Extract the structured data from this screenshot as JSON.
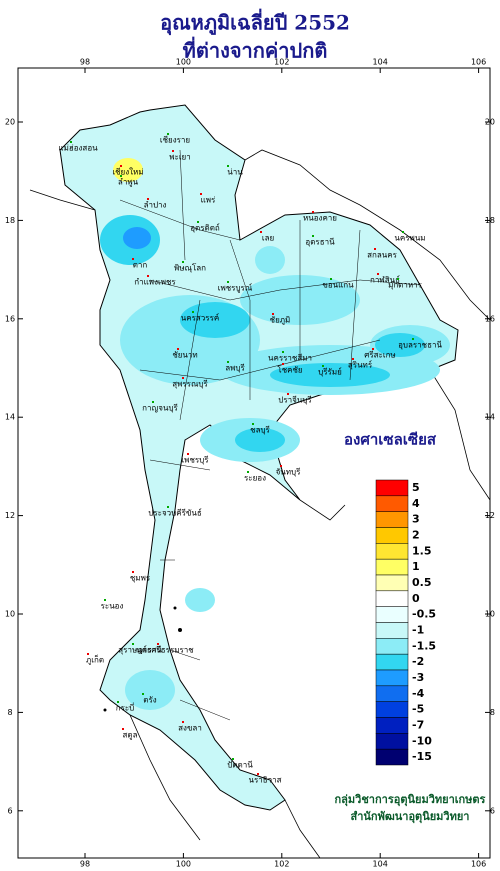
{
  "title": [
    "อุณหภูมิเฉลี่ยปี 2552",
    "ที่ต่างจากค่าปกติ"
  ],
  "lon_ticks": [
    98,
    100,
    102,
    104,
    106
  ],
  "lat_ticks": [
    20,
    18,
    16,
    14,
    12,
    10,
    8,
    6
  ],
  "legend": {
    "title": "องศาเซลเซียส",
    "items": [
      {
        "label": 5,
        "color": "#ff0000"
      },
      {
        "label": 4,
        "color": "#ff5a00"
      },
      {
        "label": 3,
        "color": "#ff9600"
      },
      {
        "label": 2,
        "color": "#ffc800"
      },
      {
        "label": 1.5,
        "color": "#ffe632"
      },
      {
        "label": 1,
        "color": "#ffff64"
      },
      {
        "label": 0.5,
        "color": "#ffffb4"
      },
      {
        "label": 0,
        "color": "#ffffff"
      },
      {
        "label": -0.5,
        "color": "#eaffff"
      },
      {
        "label": -1,
        "color": "#c8f8f8"
      },
      {
        "label": -1.5,
        "color": "#8cecf6"
      },
      {
        "label": -2,
        "color": "#32d6f0"
      },
      {
        "label": -3,
        "color": "#1e9cff"
      },
      {
        "label": -4,
        "color": "#106ef0"
      },
      {
        "label": -5,
        "color": "#0040e0"
      },
      {
        "label": -7,
        "color": "#0020c0"
      },
      {
        "label": -10,
        "color": "#0010a0"
      },
      {
        "label": -15,
        "color": "#000070"
      }
    ]
  },
  "provinces": [
    "เชียงราย",
    "พะเยา",
    "น่าน",
    "เชียงใหม่",
    "ลำพูน",
    "แพร่",
    "แม่ฮ่องสอน",
    "ลำปาง",
    "อุตรดิตถ์",
    "ตาก",
    "พิษณุโลก",
    "กำแพงเพชร",
    "เพชรบูรณ์",
    "หนองคาย",
    "อุดรธานี",
    "สกลนคร",
    "นครพนม",
    "เลย",
    "ขอนแก่น",
    "กาฬสินธุ์",
    "มุกดาหาร",
    "ชัยภูมิ",
    "นครสวรรค์",
    "ชัยนาท",
    "ลพบุรี",
    "สุรินทร์",
    "อุบลราชธานี",
    "ศรีสะเกษ",
    "นครราชสีมา",
    "โชคชัย",
    "บุรีรัมย์",
    "สุพรรณบุรี",
    "กาญจนบุรี",
    "ปราจีนบุรี",
    "ชลบุรี",
    "เพชรบุรี",
    "ระยอง",
    "จันทบุรี",
    "ประจวบคีรีขันธ์",
    "ชุมพร",
    "ระนอง",
    "นครศรีธรรมราช",
    "สุราษฎร์ธานี",
    "ภูเก็ต",
    "ตรัง",
    "สงขลา",
    "ปัตตานี",
    "นราธิวาส",
    "กระบี่",
    "สตูล"
  ],
  "credits": [
    "กลุ่มวิชาการอุตุนิยมวิทยาเกษตร",
    "สำนักพัฒนาอุตุนิยมวิทยา"
  ]
}
